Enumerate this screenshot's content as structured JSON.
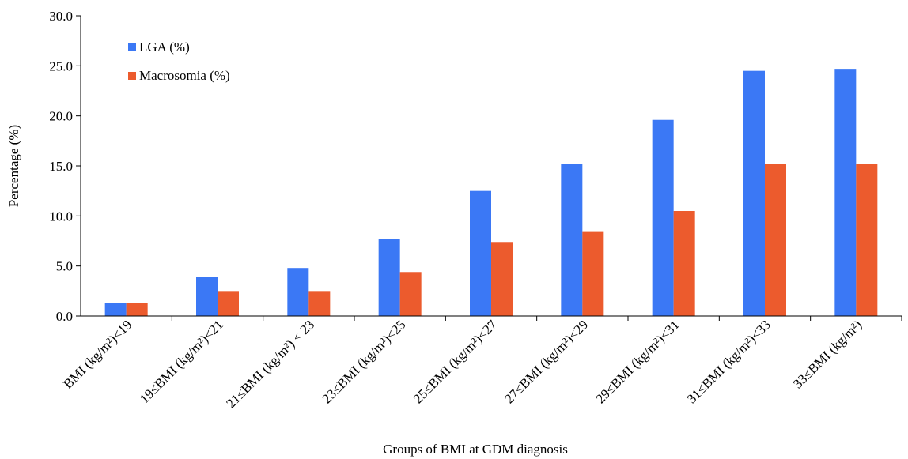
{
  "chart_data": {
    "type": "bar",
    "title": "",
    "xlabel": "Groups of BMI at GDM diagnosis",
    "ylabel": "Percentage (%)",
    "ylim": [
      0,
      30
    ],
    "yticks": [
      "0.0",
      "5.0",
      "10.0",
      "15.0",
      "20.0",
      "25.0",
      "30.0"
    ],
    "grid": false,
    "legend_position": "top-left",
    "categories": [
      "BMI (kg/m²)<19",
      "19≤BMI (kg/m²)<21",
      "21≤BMI (kg/m²) < 23",
      "23≤BMI (kg/m²)<25",
      "25≤BMI (kg/m²)<27",
      "27≤BMI (kg/m²)<29",
      "29≤BMI (kg/m²)<31",
      "31≤BMI (kg/m²)<33",
      "33≤BMI (kg/m²)"
    ],
    "series": [
      {
        "name": "LGA (%)",
        "color": "#3b78f5",
        "values": [
          1.3,
          3.9,
          4.8,
          7.7,
          12.5,
          15.2,
          19.6,
          24.5,
          24.7
        ]
      },
      {
        "name": "Macrosomia (%)",
        "color": "#ec5b2d",
        "values": [
          1.3,
          2.5,
          2.5,
          4.4,
          7.4,
          8.4,
          10.5,
          15.2,
          15.2
        ]
      }
    ]
  }
}
